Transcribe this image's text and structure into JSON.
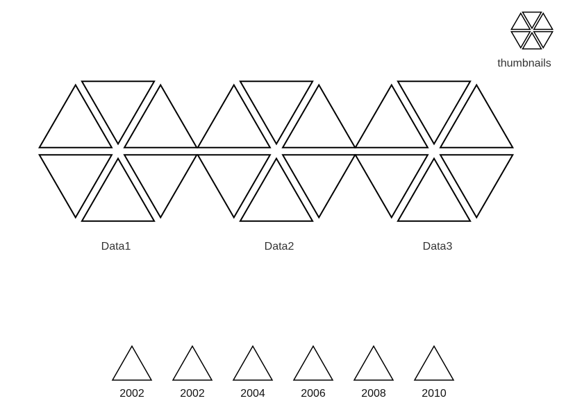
{
  "thumbnails": {
    "label": "thumbnails",
    "icon": "hexagon-triangles-icon"
  },
  "datasets": [
    {
      "label": "Data1"
    },
    {
      "label": "Data2"
    },
    {
      "label": "Data3"
    }
  ],
  "years": [
    "2002",
    "2002",
    "2004",
    "2006",
    "2008",
    "2010"
  ],
  "colors": {
    "stroke": "#000000",
    "fill": "#ffffff",
    "background": "#ffffff"
  }
}
